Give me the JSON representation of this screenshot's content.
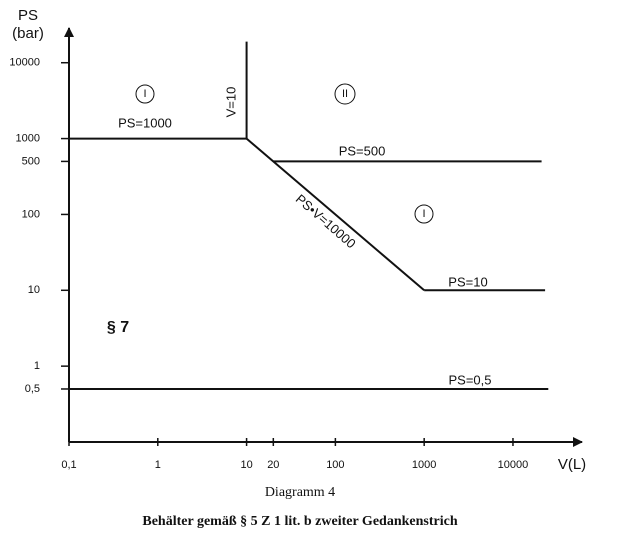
{
  "chart_data": {
    "type": "line",
    "x_label": "V(L)",
    "y_label": [
      "PS",
      "(bar)"
    ],
    "caption": "Diagramm 4",
    "subtitle": "Behälter gemäß § 5 Z 1 lit. b zweiter Gedankenstrich",
    "xlog": true,
    "ylog": true,
    "grid": false,
    "legend": false,
    "xlim": [
      0.1,
      54000
    ],
    "ylim": [
      0.1,
      27000
    ],
    "xticks": [
      {
        "value": 0.1,
        "label": "0,1"
      },
      1,
      10,
      20,
      100,
      1000,
      10000
    ],
    "yticks": [
      {
        "value": 0.5,
        "label": "0,5"
      },
      1,
      10,
      100,
      500,
      1000,
      10000
    ],
    "series": [
      {
        "name": "PS=1000",
        "color": "#111111",
        "x": [
          0.1,
          10
        ],
        "values": [
          1000,
          1000
        ]
      },
      {
        "name": "V=10",
        "color": "#111111",
        "x": [
          10,
          10
        ],
        "values": [
          1000,
          19000
        ]
      },
      {
        "name": "PS•V=10000",
        "color": "#111111",
        "x": [
          10,
          1000
        ],
        "values": [
          1000,
          10
        ]
      },
      {
        "name": "PS=500",
        "color": "#111111",
        "x": [
          20,
          21000
        ],
        "values": [
          500,
          500
        ]
      },
      {
        "name": "PS=10",
        "color": "#111111",
        "x": [
          1000,
          23000
        ],
        "values": [
          10,
          10
        ]
      },
      {
        "name": "PS=0,5",
        "color": "#111111",
        "x": [
          0.1,
          25000
        ],
        "values": [
          0.5,
          0.5
        ]
      }
    ],
    "regions": [
      "I",
      "II",
      "I"
    ],
    "note": "§ 7"
  }
}
